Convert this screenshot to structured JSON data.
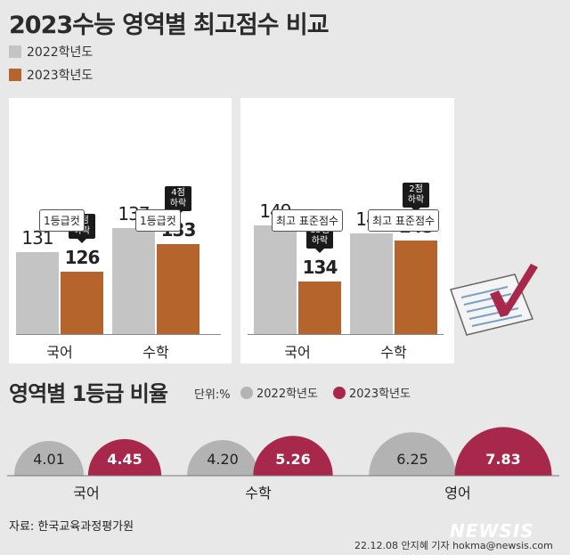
{
  "title": "2023수능 영역별 최고점수 비교",
  "colors": {
    "y2022": "#c4c4c4",
    "y2023": "#b5642b",
    "y2023_ratio": "#a8284c",
    "ratio2022": "#b3b3b3"
  },
  "legend": {
    "y2022": "2022학년도",
    "y2023": "2023학년도"
  },
  "chart_data": [
    {
      "type": "bar",
      "categories": [
        "국어",
        "수학"
      ],
      "series": [
        {
          "name": "2022학년도",
          "values": [
            131,
            137
          ]
        },
        {
          "name": "2023학년도",
          "values": [
            126,
            133
          ]
        }
      ],
      "tags": [
        "1등급컷",
        "1등급컷"
      ],
      "callouts": [
        "5점\n하락",
        "4점\n하락"
      ]
    },
    {
      "type": "bar",
      "categories": [
        "국어",
        "수학"
      ],
      "series": [
        {
          "name": "2022학년도",
          "values": [
            149,
            147
          ]
        },
        {
          "name": "2023학년도",
          "values": [
            134,
            145
          ]
        }
      ],
      "tags": [
        "최고 표준점수",
        "최고 표준점수"
      ],
      "callouts": [
        "15점\n하락",
        "2점\n하락"
      ]
    },
    {
      "type": "bar",
      "title": "영역별 1등급 비율",
      "unit": "단위:%",
      "categories": [
        "국어",
        "수학",
        "영어"
      ],
      "series": [
        {
          "name": "2022학년도",
          "values": [
            4.01,
            4.2,
            6.25
          ]
        },
        {
          "name": "2023학년도",
          "values": [
            4.45,
            5.26,
            7.83
          ]
        }
      ]
    }
  ],
  "section2": {
    "title": "영역별 1등급 비율",
    "unit": "단위:%"
  },
  "value_labels": {
    "p1": [
      "131",
      "126",
      "137",
      "133"
    ],
    "p2": [
      "149",
      "134",
      "147",
      "145"
    ],
    "ratio": [
      "4.01",
      "4.45",
      "4.20",
      "5.26",
      "6.25",
      "7.83"
    ]
  },
  "footer": {
    "source": "자료: 한국교육과정평가원",
    "credit": "22.12.08 안지혜 기자 hokma@newsis.com",
    "brand": "NEWSIS"
  }
}
